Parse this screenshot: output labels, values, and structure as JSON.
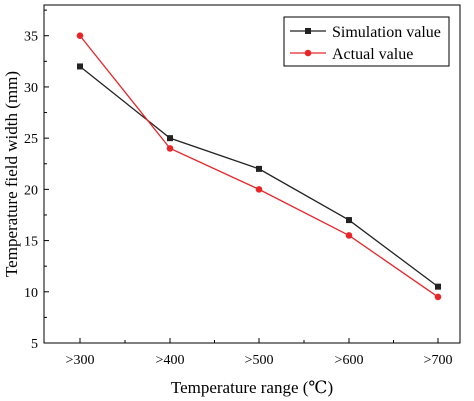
{
  "chart_data": {
    "type": "line",
    "title": "",
    "xlabel": "Temperature range (℃)",
    "ylabel": "Temperature field width (mm)",
    "categories": [
      ">300",
      ">400",
      ">500",
      ">600",
      ">700"
    ],
    "ylim": [
      5,
      38
    ],
    "yticks": [
      5,
      10,
      15,
      20,
      25,
      30,
      35
    ],
    "grid": false,
    "legend_position": "top-right",
    "series": [
      {
        "name": "Simulation value",
        "color": "#222222",
        "marker": "square",
        "values": [
          32,
          25,
          22,
          17,
          10.5
        ]
      },
      {
        "name": "Actual value",
        "color": "#e8262a",
        "marker": "circle",
        "values": [
          35,
          24,
          20,
          15.5,
          9.5
        ]
      }
    ]
  }
}
